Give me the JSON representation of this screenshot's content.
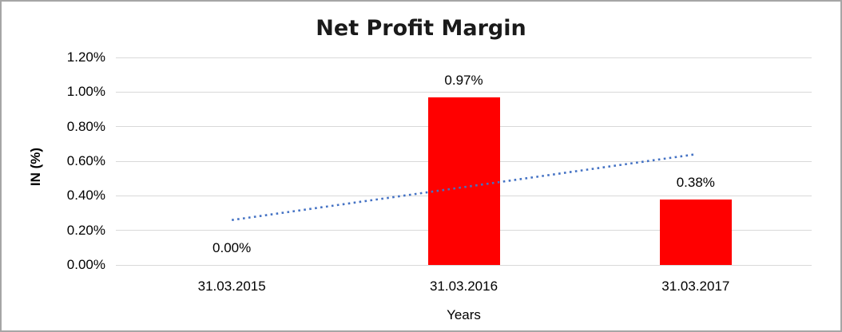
{
  "window": {
    "background": "#ffffff",
    "border_color": "#a6a6a6"
  },
  "chart_data": {
    "type": "bar",
    "title": "Net Profit Margin",
    "xlabel": "Years",
    "ylabel": "IN (%)",
    "categories": [
      "31.03.2015",
      "31.03.2016",
      "31.03.2017"
    ],
    "series": [
      {
        "name": "Net Profit Margin",
        "values": [
          0.0,
          0.97,
          0.38
        ]
      }
    ],
    "data_labels": [
      "0.00%",
      "0.97%",
      "0.38%"
    ],
    "y_ticks": [
      "1.20%",
      "1.00%",
      "0.80%",
      "0.60%",
      "0.40%",
      "0.20%",
      "0.00%"
    ],
    "ylim": [
      0,
      1.2
    ],
    "grid": true,
    "legend": "none",
    "bar_color": "#ff0000",
    "gridline_color": "#d9d9d9",
    "trendline": {
      "type": "linear",
      "style": "dotted",
      "color": "#4472c4",
      "values": [
        0.26,
        0.45,
        0.64
      ]
    }
  }
}
